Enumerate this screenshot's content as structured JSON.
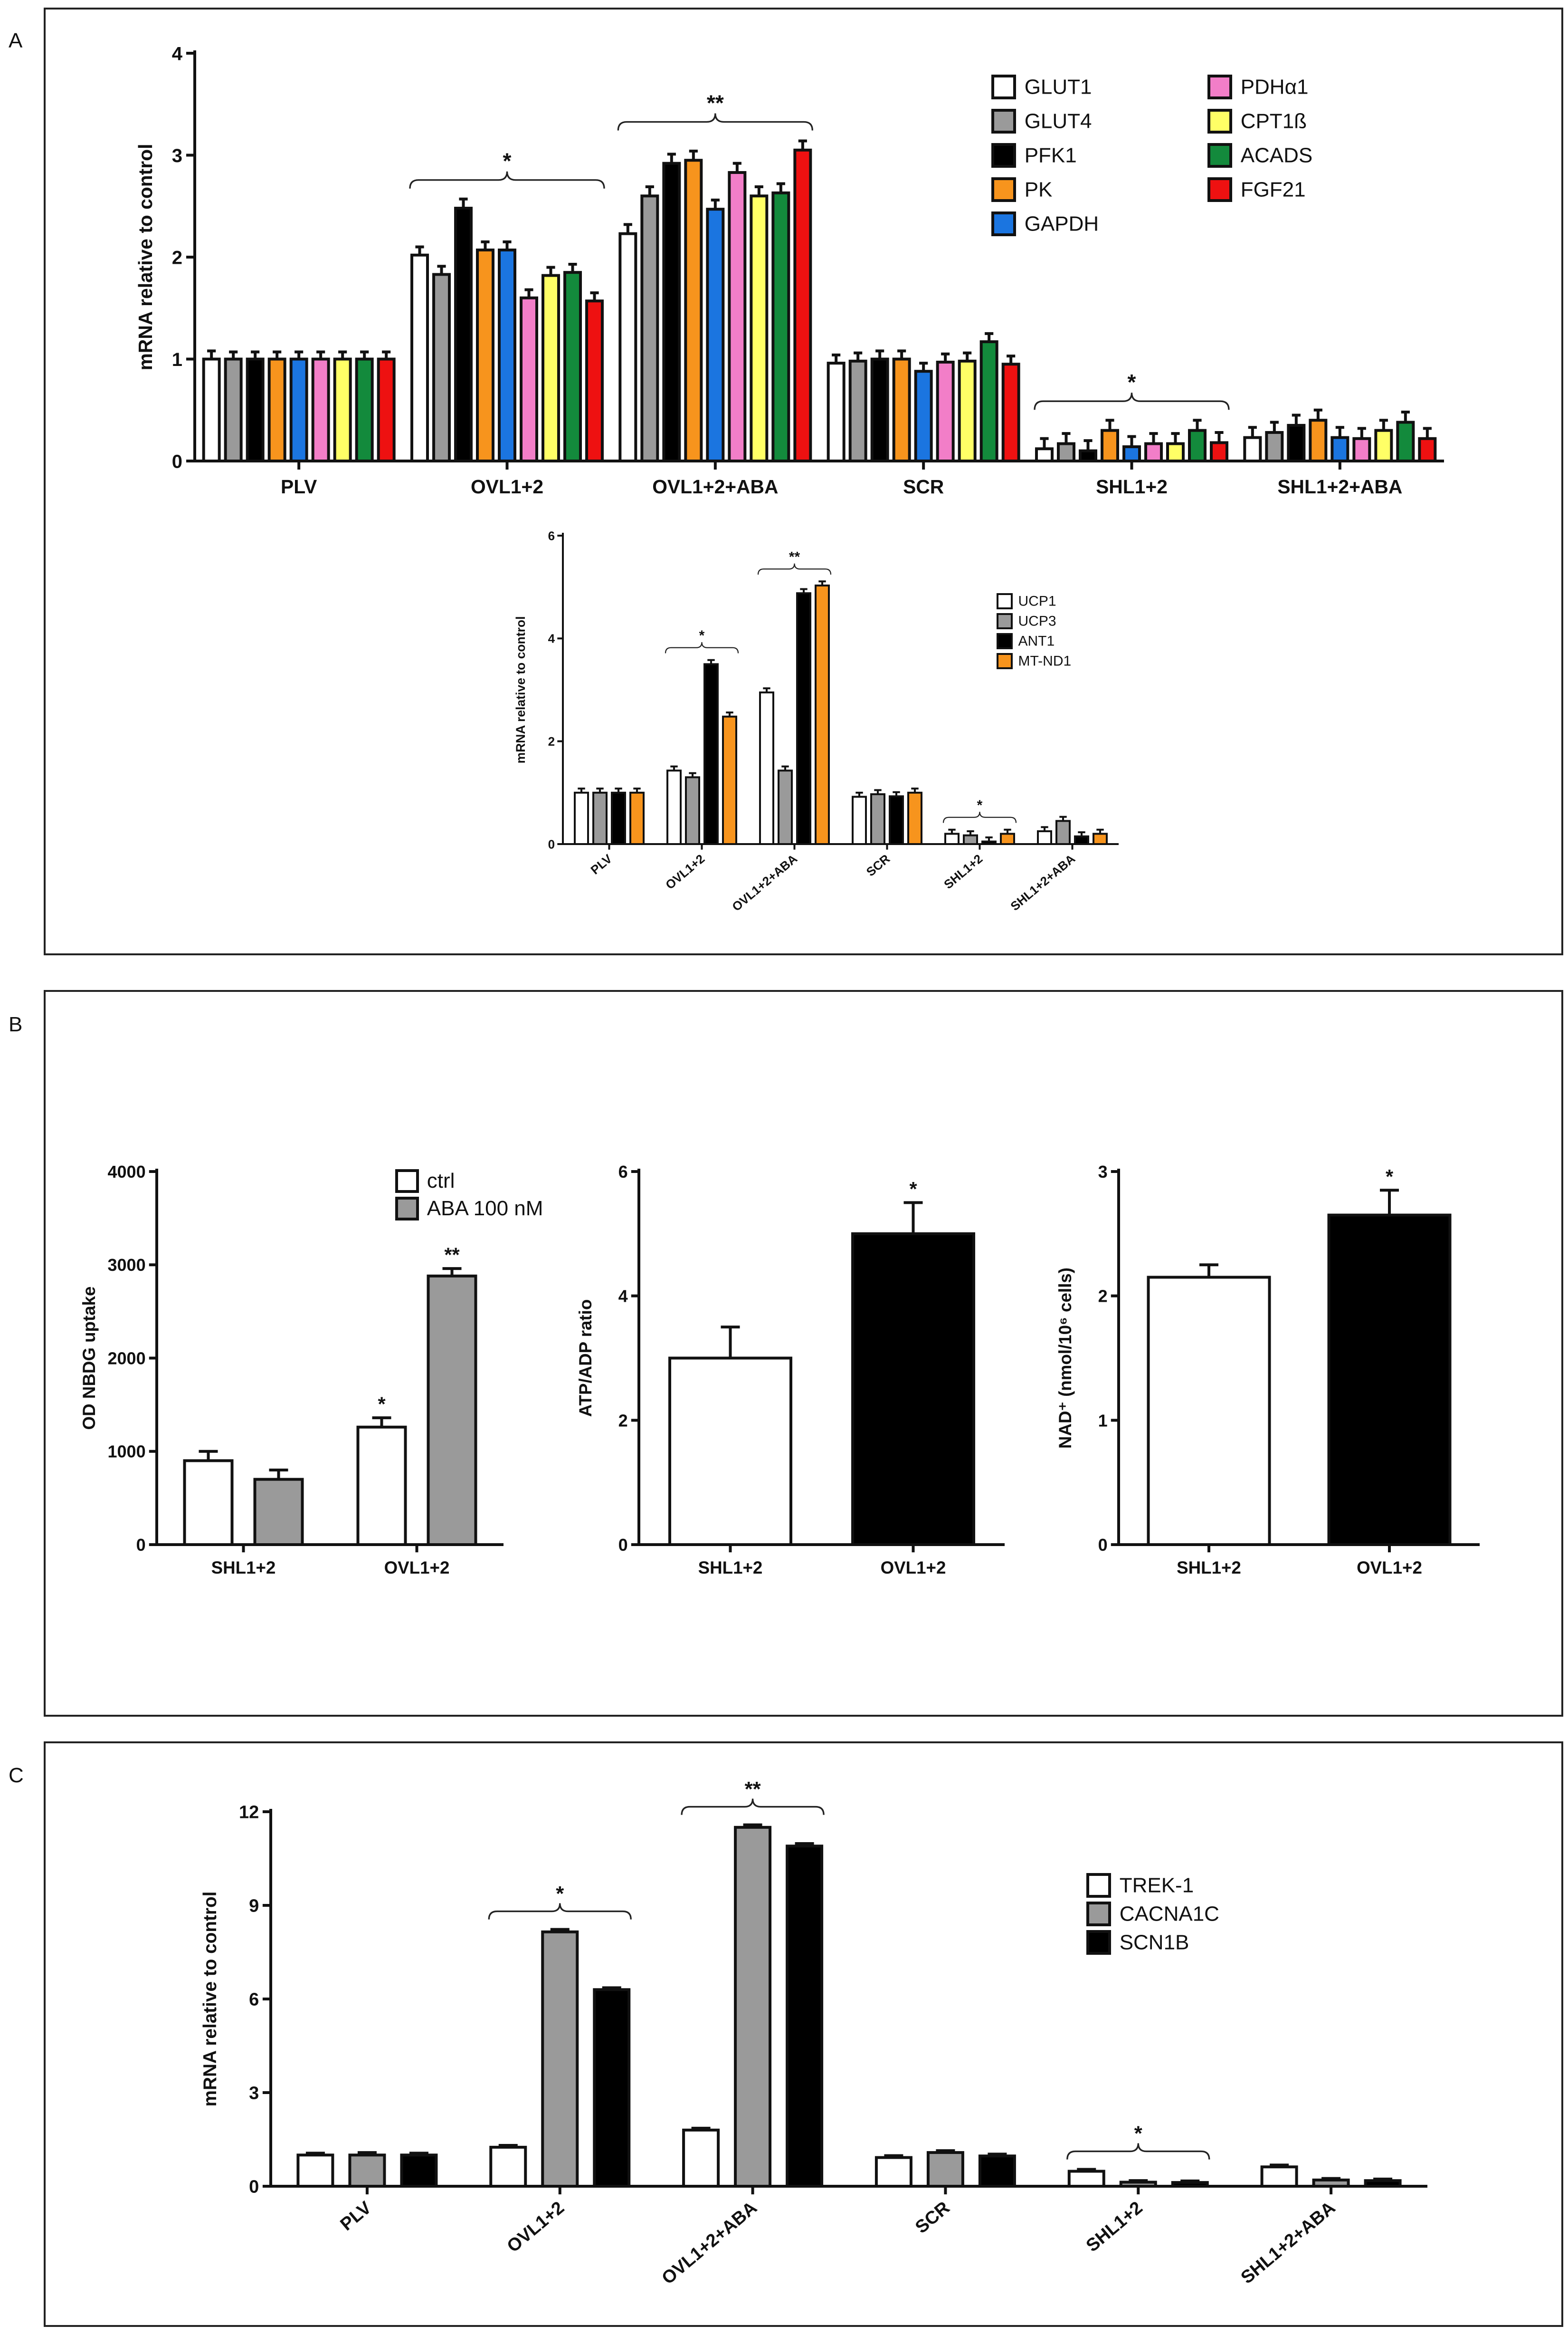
{
  "panel_labels": [
    "A",
    "B",
    "C"
  ],
  "chart_data": [
    {
      "id": "A-top",
      "type": "bar",
      "ylabel": "mRNA relative to control",
      "ylim": [
        0,
        4
      ],
      "yticks": [
        0,
        1,
        2,
        3,
        4
      ],
      "categories": [
        "PLV",
        "OVL1+2",
        "OVL1+2+ABA",
        "SCR",
        "SHL1+2",
        "SHL1+2+ABA"
      ],
      "series": [
        {
          "name": "GLUT1",
          "color": "#ffffff",
          "values": [
            1.0,
            2.02,
            2.23,
            0.96,
            0.12,
            0.23
          ],
          "errors": [
            0.08,
            0.08,
            0.09,
            0.08,
            0.1,
            0.1
          ]
        },
        {
          "name": "GLUT4",
          "color": "#9a9a9a",
          "values": [
            1.0,
            1.83,
            2.6,
            0.98,
            0.17,
            0.28
          ],
          "errors": [
            0.07,
            0.08,
            0.09,
            0.08,
            0.1,
            0.1
          ]
        },
        {
          "name": "PFK1",
          "color": "#000000",
          "values": [
            1.0,
            2.48,
            2.92,
            1.0,
            0.1,
            0.35
          ],
          "errors": [
            0.07,
            0.09,
            0.09,
            0.08,
            0.1,
            0.1
          ]
        },
        {
          "name": "PK",
          "color": "#f7941d",
          "values": [
            1.0,
            2.07,
            2.95,
            1.0,
            0.3,
            0.4
          ],
          "errors": [
            0.07,
            0.08,
            0.09,
            0.08,
            0.1,
            0.1
          ]
        },
        {
          "name": "GAPDH",
          "color": "#1b75e0",
          "values": [
            1.0,
            2.07,
            2.47,
            0.88,
            0.14,
            0.23
          ],
          "errors": [
            0.07,
            0.08,
            0.09,
            0.08,
            0.1,
            0.1
          ]
        },
        {
          "name": "PDHα1",
          "color": "#f27ec8",
          "values": [
            1.0,
            1.6,
            2.83,
            0.97,
            0.17,
            0.22
          ],
          "errors": [
            0.07,
            0.08,
            0.09,
            0.08,
            0.1,
            0.1
          ]
        },
        {
          "name": "CPT1ß",
          "color": "#ffff66",
          "values": [
            1.0,
            1.82,
            2.6,
            0.98,
            0.17,
            0.3
          ],
          "errors": [
            0.07,
            0.08,
            0.09,
            0.08,
            0.1,
            0.1
          ]
        },
        {
          "name": "ACADS",
          "color": "#138a3c",
          "values": [
            1.0,
            1.85,
            2.63,
            1.17,
            0.3,
            0.38
          ],
          "errors": [
            0.07,
            0.08,
            0.09,
            0.08,
            0.1,
            0.1
          ]
        },
        {
          "name": "FGF21",
          "color": "#ee1111",
          "values": [
            1.0,
            1.57,
            3.05,
            0.95,
            0.18,
            0.22
          ],
          "errors": [
            0.07,
            0.08,
            0.09,
            0.08,
            0.1,
            0.1
          ]
        }
      ],
      "annotations": [
        {
          "text": "*",
          "from": 1,
          "to": 1
        },
        {
          "text": "**",
          "from": 2,
          "to": 2
        },
        {
          "text": "*",
          "from": 4,
          "to": 4
        }
      ]
    },
    {
      "id": "A-inset",
      "type": "bar",
      "ylabel": "mRNA relative to control",
      "ylim": [
        0,
        6
      ],
      "yticks": [
        0,
        2,
        4,
        6
      ],
      "categories": [
        "PLV",
        "OVL1+2",
        "OVL1+2+ABA",
        "SCR",
        "SHL1+2",
        "SHL1+2+ABA"
      ],
      "series": [
        {
          "name": "UCP1",
          "color": "#ffffff",
          "values": [
            1.0,
            1.43,
            2.95,
            0.92,
            0.2,
            0.25
          ],
          "errors": [
            0.08,
            0.08,
            0.08,
            0.08,
            0.08,
            0.08
          ]
        },
        {
          "name": "UCP3",
          "color": "#9a9a9a",
          "values": [
            1.0,
            1.3,
            1.43,
            0.97,
            0.17,
            0.45
          ],
          "errors": [
            0.08,
            0.08,
            0.08,
            0.08,
            0.08,
            0.08
          ]
        },
        {
          "name": "ANT1",
          "color": "#000000",
          "values": [
            1.0,
            3.5,
            4.88,
            0.93,
            0.05,
            0.15
          ],
          "errors": [
            0.08,
            0.08,
            0.08,
            0.08,
            0.08,
            0.08
          ]
        },
        {
          "name": "MT-ND1",
          "color": "#f7941d",
          "values": [
            1.0,
            2.48,
            5.03,
            1.0,
            0.2,
            0.2
          ],
          "errors": [
            0.08,
            0.08,
            0.08,
            0.08,
            0.08,
            0.08
          ]
        }
      ],
      "annotations": [
        {
          "text": "*",
          "from": 1,
          "to": 1
        },
        {
          "text": "**",
          "from": 2,
          "to": 2
        },
        {
          "text": "*",
          "from": 4,
          "to": 4
        }
      ]
    },
    {
      "id": "B-1",
      "type": "bar",
      "ylabel": "OD NBDG uptake",
      "ylim": [
        0,
        4000
      ],
      "yticks": [
        0,
        1000,
        2000,
        3000,
        4000
      ],
      "categories": [
        "SHL1+2",
        "OVL1+2"
      ],
      "series": [
        {
          "name": "ctrl",
          "color": "#ffffff",
          "values": [
            900,
            1260
          ],
          "errors": [
            100,
            100
          ],
          "sig": [
            "",
            "*"
          ]
        },
        {
          "name": "ABA 100 nM",
          "color": "#9a9a9a",
          "values": [
            700,
            2880
          ],
          "errors": [
            100,
            80
          ],
          "sig": [
            "",
            "**"
          ]
        }
      ]
    },
    {
      "id": "B-2",
      "type": "bar",
      "ylabel": "ATP/ADP ratio",
      "ylim": [
        0,
        6
      ],
      "yticks": [
        0,
        2,
        4,
        6
      ],
      "categories": [
        "SHL1+2",
        "OVL1+2"
      ],
      "series": [
        {
          "name": "ATP/ADP",
          "color_per_category": [
            "#ffffff",
            "#000000"
          ],
          "values": [
            3.0,
            5.0
          ],
          "errors": [
            0.5,
            0.5
          ],
          "sig": [
            "",
            "*"
          ]
        }
      ]
    },
    {
      "id": "B-3",
      "type": "bar",
      "ylabel": "NAD⁺ (nmol/10⁶ cells)",
      "ylim": [
        0,
        3
      ],
      "yticks": [
        0,
        1,
        2,
        3
      ],
      "categories": [
        "SHL1+2",
        "OVL1+2"
      ],
      "series": [
        {
          "name": "NAD+",
          "color_per_category": [
            "#ffffff",
            "#000000"
          ],
          "values": [
            2.15,
            2.65
          ],
          "errors": [
            0.1,
            0.2
          ],
          "sig": [
            "",
            "*"
          ]
        }
      ]
    },
    {
      "id": "C",
      "type": "bar",
      "ylabel": "mRNA relative to control",
      "ylim": [
        0,
        12
      ],
      "yticks": [
        0,
        3,
        6,
        9,
        12
      ],
      "categories": [
        "PLV",
        "OVL1+2",
        "OVL1+2+ABA",
        "SCR",
        "SHL1+2",
        "SHL1+2+ABA"
      ],
      "series": [
        {
          "name": "TREK-1",
          "color": "#ffffff",
          "values": [
            1.0,
            1.25,
            1.8,
            0.92,
            0.48,
            0.62
          ],
          "errors": [
            0.06,
            0.06,
            0.06,
            0.06,
            0.06,
            0.06
          ]
        },
        {
          "name": "CACNA1C",
          "color": "#9a9a9a",
          "values": [
            1.0,
            8.15,
            11.5,
            1.08,
            0.13,
            0.2
          ],
          "errors": [
            0.08,
            0.08,
            0.08,
            0.06,
            0.05,
            0.05
          ]
        },
        {
          "name": "SCN1B",
          "color": "#000000",
          "values": [
            1.0,
            6.3,
            10.9,
            0.97,
            0.12,
            0.18
          ],
          "errors": [
            0.06,
            0.06,
            0.08,
            0.06,
            0.05,
            0.05
          ]
        }
      ],
      "annotations": [
        {
          "text": "*",
          "from": 1,
          "to": 1
        },
        {
          "text": "**",
          "from": 2,
          "to": 2
        },
        {
          "text": "*",
          "from": 4,
          "to": 4
        }
      ]
    }
  ]
}
